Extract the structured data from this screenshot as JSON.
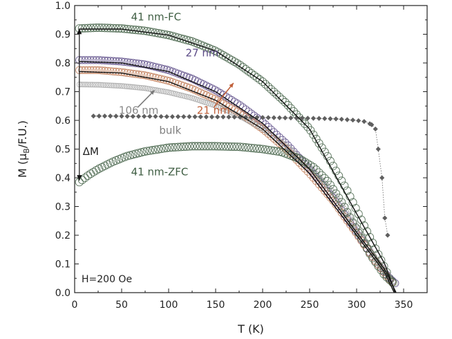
{
  "chart_data": {
    "type": "scatter",
    "title": "",
    "xlabel": "T (K)",
    "ylabel_parts": {
      "main": "M (μ",
      "sub": "B",
      "rest": "/F.U.)"
    },
    "xlim": [
      0,
      375
    ],
    "ylim": [
      0.0,
      1.0
    ],
    "xticks": [
      "0",
      "50",
      "100",
      "150",
      "200",
      "250",
      "300",
      "350"
    ],
    "yticks": [
      "0.0",
      "0.1",
      "0.2",
      "0.3",
      "0.4",
      "0.5",
      "0.6",
      "0.7",
      "0.8",
      "0.9",
      "1.0"
    ],
    "field_label": "H=200 Oe",
    "delta_label": "ΔM",
    "delta_arrow": {
      "x": 5,
      "y_from": 0.92,
      "y_to": 0.39
    },
    "series": [
      {
        "name": "41 nm-FC",
        "color": "#3f5e43",
        "x": [
          5,
          25,
          50,
          75,
          100,
          125,
          150,
          175,
          200,
          225,
          250,
          270,
          290,
          310,
          325,
          335,
          340
        ],
        "y": [
          0.92,
          0.923,
          0.92,
          0.912,
          0.897,
          0.875,
          0.842,
          0.795,
          0.735,
          0.66,
          0.57,
          0.47,
          0.355,
          0.22,
          0.12,
          0.05,
          0.03
        ]
      },
      {
        "name": "27 nm",
        "color": "#5b4a86",
        "x": [
          5,
          25,
          50,
          75,
          100,
          125,
          150,
          175,
          200,
          225,
          250,
          275,
          300,
          320,
          335,
          342
        ],
        "y": [
          0.81,
          0.81,
          0.805,
          0.795,
          0.775,
          0.745,
          0.705,
          0.655,
          0.595,
          0.52,
          0.43,
          0.33,
          0.21,
          0.11,
          0.05,
          0.03
        ]
      },
      {
        "name": "21 nm",
        "color": "#c07a55",
        "x": [
          5,
          25,
          50,
          75,
          100,
          125,
          150,
          175,
          200,
          225,
          250,
          275,
          300,
          320,
          335,
          340
        ],
        "y": [
          0.775,
          0.775,
          0.768,
          0.757,
          0.738,
          0.71,
          0.673,
          0.627,
          0.57,
          0.5,
          0.415,
          0.32,
          0.205,
          0.11,
          0.045,
          0.03
        ]
      },
      {
        "name": "106 nm",
        "color": "#9a9a9a",
        "x": [
          5,
          25,
          50,
          75,
          100,
          125,
          150,
          175,
          200,
          225,
          250,
          275,
          300,
          320,
          335,
          342
        ],
        "y": [
          0.725,
          0.724,
          0.72,
          0.712,
          0.698,
          0.678,
          0.651,
          0.616,
          0.571,
          0.513,
          0.44,
          0.35,
          0.23,
          0.12,
          0.05,
          0.03
        ]
      },
      {
        "name": "bulk",
        "color": "#5f5f5f",
        "x": [
          20,
          40,
          60,
          80,
          100,
          120,
          140,
          160,
          180,
          200,
          220,
          240,
          260,
          280,
          300,
          310,
          316,
          320,
          323,
          327,
          330,
          333
        ],
        "y": [
          0.615,
          0.615,
          0.614,
          0.614,
          0.613,
          0.613,
          0.612,
          0.612,
          0.611,
          0.61,
          0.609,
          0.608,
          0.607,
          0.605,
          0.6,
          0.595,
          0.585,
          0.57,
          0.5,
          0.4,
          0.26,
          0.2
        ]
      },
      {
        "name": "41 nm-ZFC",
        "color": "#3f5e43",
        "x": [
          5,
          15,
          25,
          40,
          55,
          75,
          100,
          125,
          150,
          175,
          200,
          220,
          240,
          255,
          270,
          285,
          300,
          315,
          330,
          340
        ],
        "y": [
          0.385,
          0.41,
          0.43,
          0.455,
          0.475,
          0.492,
          0.505,
          0.51,
          0.51,
          0.508,
          0.5,
          0.49,
          0.465,
          0.435,
          0.385,
          0.31,
          0.22,
          0.13,
          0.06,
          0.03
        ]
      }
    ],
    "fits": [
      {
        "name": "fit-41nm-FC",
        "x": [
          5,
          50,
          100,
          150,
          200,
          250,
          300,
          330,
          341
        ],
        "y": [
          0.918,
          0.918,
          0.897,
          0.842,
          0.735,
          0.57,
          0.275,
          0.1,
          0.0
        ]
      },
      {
        "name": "fit-27nm",
        "x": [
          5,
          50,
          100,
          150,
          200,
          250,
          300,
          330,
          342
        ],
        "y": [
          0.805,
          0.8,
          0.77,
          0.7,
          0.59,
          0.43,
          0.21,
          0.08,
          0.0
        ]
      },
      {
        "name": "fit-21nm",
        "x": [
          5,
          50,
          100,
          150,
          200,
          250,
          300,
          330,
          340
        ],
        "y": [
          0.77,
          0.765,
          0.735,
          0.67,
          0.57,
          0.415,
          0.2,
          0.07,
          0.0
        ]
      }
    ],
    "annotations": [
      {
        "text": "41 nm-FC",
        "color": "#3f5e43",
        "x": 60,
        "y": 0.96
      },
      {
        "text": "27 nm",
        "color": "#5b4a86",
        "x": 118,
        "y": 0.835
      },
      {
        "text": "106 nm",
        "color": "#8a8a8a",
        "x": 47,
        "y": 0.635
      },
      {
        "text": "21 nm",
        "color": "#c0603a",
        "x": 130,
        "y": 0.635
      },
      {
        "text": "bulk",
        "color": "#808080",
        "x": 90,
        "y": 0.565
      },
      {
        "text": "41 nm-ZFC",
        "color": "#3f5e43",
        "x": 60,
        "y": 0.42
      }
    ],
    "pointers": [
      {
        "name": "arrow-106nm",
        "color": "#7a7a7a",
        "from": [
          67,
          0.645
        ],
        "to": [
          85,
          0.705
        ]
      },
      {
        "name": "arrow-21nm",
        "color": "#c0603a",
        "from": [
          148,
          0.645
        ],
        "to": [
          169,
          0.73
        ]
      }
    ]
  }
}
